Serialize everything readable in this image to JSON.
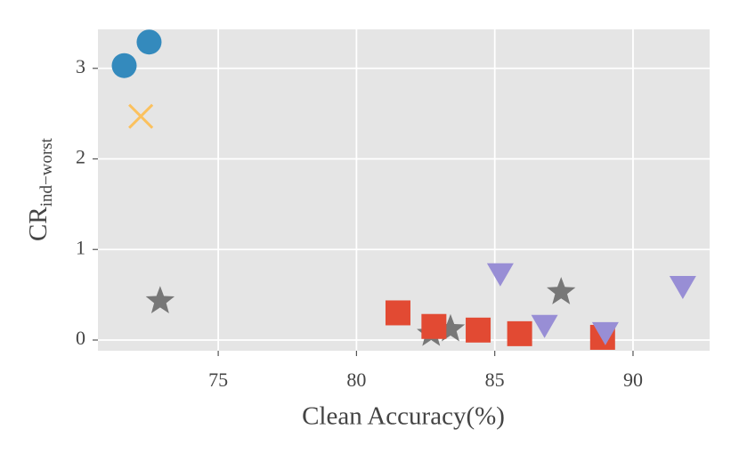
{
  "chart_data": {
    "type": "scatter",
    "xlabel": "Clean Accuracy(%)",
    "ylabel": "CR",
    "ylabel_sub": "ind−worst",
    "xlim": [
      70.65,
      92.77
    ],
    "ylim": [
      -0.118,
      3.43
    ],
    "xticks": [
      75,
      80,
      85,
      90
    ],
    "yticks": [
      0,
      1,
      2,
      3
    ],
    "grid": true,
    "background": "#e5e5e5",
    "series": [
      {
        "color": "#348abd",
        "marker": "circle",
        "x": [
          71.6,
          72.5
        ],
        "values": [
          3.03,
          3.29
        ]
      },
      {
        "color": "#fbc15e",
        "marker": "x",
        "x": [
          72.2
        ],
        "values": [
          2.47
        ]
      },
      {
        "color": "#777777",
        "marker": "star",
        "x": [
          72.9,
          82.7,
          83.4,
          87.4
        ],
        "values": [
          0.43,
          0.07,
          0.12,
          0.53
        ]
      },
      {
        "color": "#e24a33",
        "marker": "square",
        "x": [
          81.5,
          82.8,
          84.4,
          85.9,
          88.9
        ],
        "values": [
          0.3,
          0.15,
          0.11,
          0.07,
          0.03
        ]
      },
      {
        "color": "#988ed5",
        "marker": "triangle-down",
        "x": [
          85.2,
          86.8,
          89.0,
          91.8
        ],
        "values": [
          0.73,
          0.16,
          0.08,
          0.59
        ]
      }
    ]
  }
}
